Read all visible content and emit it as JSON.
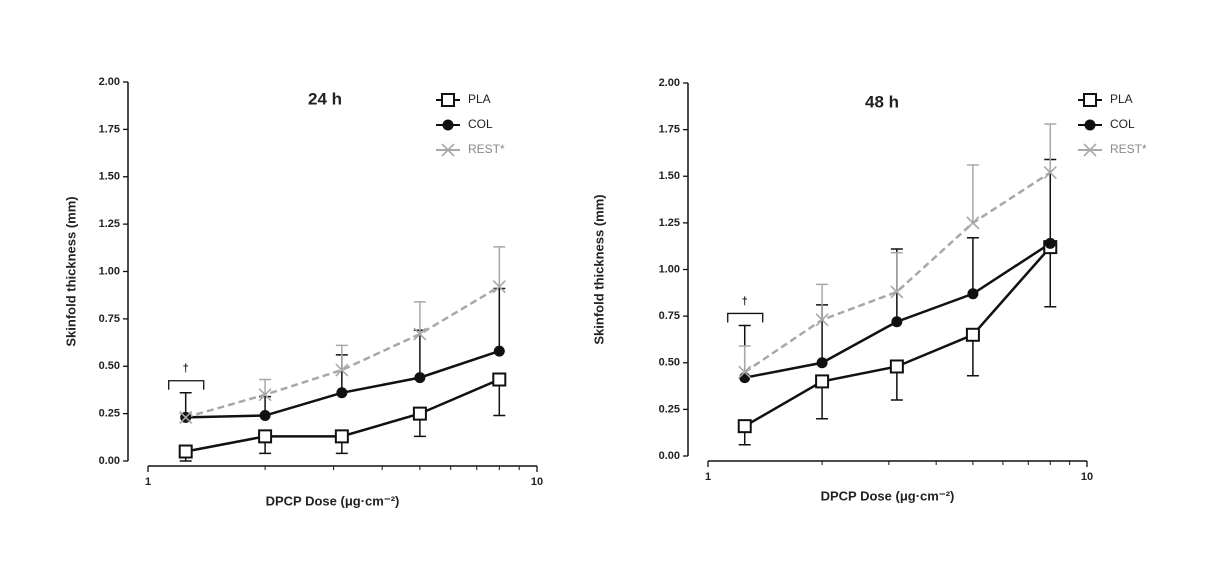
{
  "chart_data": [
    {
      "type": "line",
      "title": "24 h",
      "x_label": "DPCP Dose (μg·cm⁻²)",
      "y_label": "Skinfold thickness (mm)",
      "x": [
        1.25,
        2,
        3.15,
        5,
        8
      ],
      "xscale": "log",
      "xlim": [
        1,
        10
      ],
      "xticks": [
        1,
        10
      ],
      "ylim": [
        0,
        2
      ],
      "yticks": [
        {
          "value": 0,
          "label": "0.00"
        },
        {
          "value": 0.25,
          "label": "0.25"
        },
        {
          "value": 0.5,
          "label": "0.50"
        },
        {
          "value": 0.75,
          "label": "0.75"
        },
        {
          "value": 1,
          "label": "1.00"
        },
        {
          "value": 1.25,
          "label": "1.25"
        },
        {
          "value": 1.5,
          "label": "1.50"
        },
        {
          "value": 1.75,
          "label": "1.75"
        },
        {
          "value": 2,
          "label": "2.00"
        }
      ],
      "legend": "upper right",
      "series": [
        {
          "name": "PLA",
          "color": "#111111",
          "marker": "square-open",
          "dashed": false,
          "error_direction": "down",
          "values": [
            0.05,
            0.13,
            0.13,
            0.25,
            0.43
          ],
          "errors": [
            0.05,
            0.09,
            0.09,
            0.12,
            0.19
          ]
        },
        {
          "name": "COL",
          "color": "#111111",
          "marker": "circle",
          "dashed": false,
          "error_direction": "up",
          "values": [
            0.23,
            0.24,
            0.36,
            0.44,
            0.58
          ],
          "errors": [
            0.13,
            0.1,
            0.2,
            0.25,
            0.33
          ]
        },
        {
          "name": "REST*",
          "color": "#a8a8a8",
          "marker": "x",
          "dashed": true,
          "error_direction": "up",
          "values": [
            0.23,
            0.35,
            0.48,
            0.67,
            0.92
          ],
          "errors": [
            0.02,
            0.08,
            0.13,
            0.17,
            0.21
          ]
        }
      ],
      "annotations": [
        {
          "text": "†"
        }
      ]
    },
    {
      "type": "line",
      "title": "48 h",
      "x_label": "DPCP Dose (μg·cm⁻²)",
      "y_label": "Skinfold thickness (mm)",
      "x": [
        1.25,
        2,
        3.15,
        5,
        8
      ],
      "xscale": "log",
      "xlim": [
        1,
        10
      ],
      "xticks": [
        1,
        10
      ],
      "ylim": [
        0,
        2
      ],
      "yticks": [
        {
          "value": 0,
          "label": "0.00"
        },
        {
          "value": 0.25,
          "label": "0.25"
        },
        {
          "value": 0.5,
          "label": "0.50"
        },
        {
          "value": 0.75,
          "label": "0.75"
        },
        {
          "value": 1,
          "label": "1.00"
        },
        {
          "value": 1.25,
          "label": "1.25"
        },
        {
          "value": 1.5,
          "label": "1.50"
        },
        {
          "value": 1.75,
          "label": "1.75"
        },
        {
          "value": 2,
          "label": "2.00"
        }
      ],
      "legend": "upper right",
      "series": [
        {
          "name": "PLA",
          "color": "#111111",
          "marker": "square-open",
          "dashed": false,
          "error_direction": "down",
          "values": [
            0.16,
            0.4,
            0.48,
            0.65,
            1.12
          ],
          "errors": [
            0.1,
            0.2,
            0.18,
            0.22,
            0.32
          ]
        },
        {
          "name": "COL",
          "color": "#111111",
          "marker": "circle",
          "dashed": false,
          "error_direction": "up",
          "values": [
            0.42,
            0.5,
            0.72,
            0.87,
            1.14
          ],
          "errors": [
            0.28,
            0.31,
            0.39,
            0.3,
            0.45
          ]
        },
        {
          "name": "REST*",
          "color": "#a8a8a8",
          "marker": "x",
          "dashed": true,
          "error_direction": "up",
          "values": [
            0.45,
            0.73,
            0.88,
            1.25,
            1.52
          ],
          "errors": [
            0.14,
            0.19,
            0.21,
            0.31,
            0.26
          ]
        }
      ],
      "annotations": [
        {
          "text": "†"
        }
      ]
    }
  ]
}
